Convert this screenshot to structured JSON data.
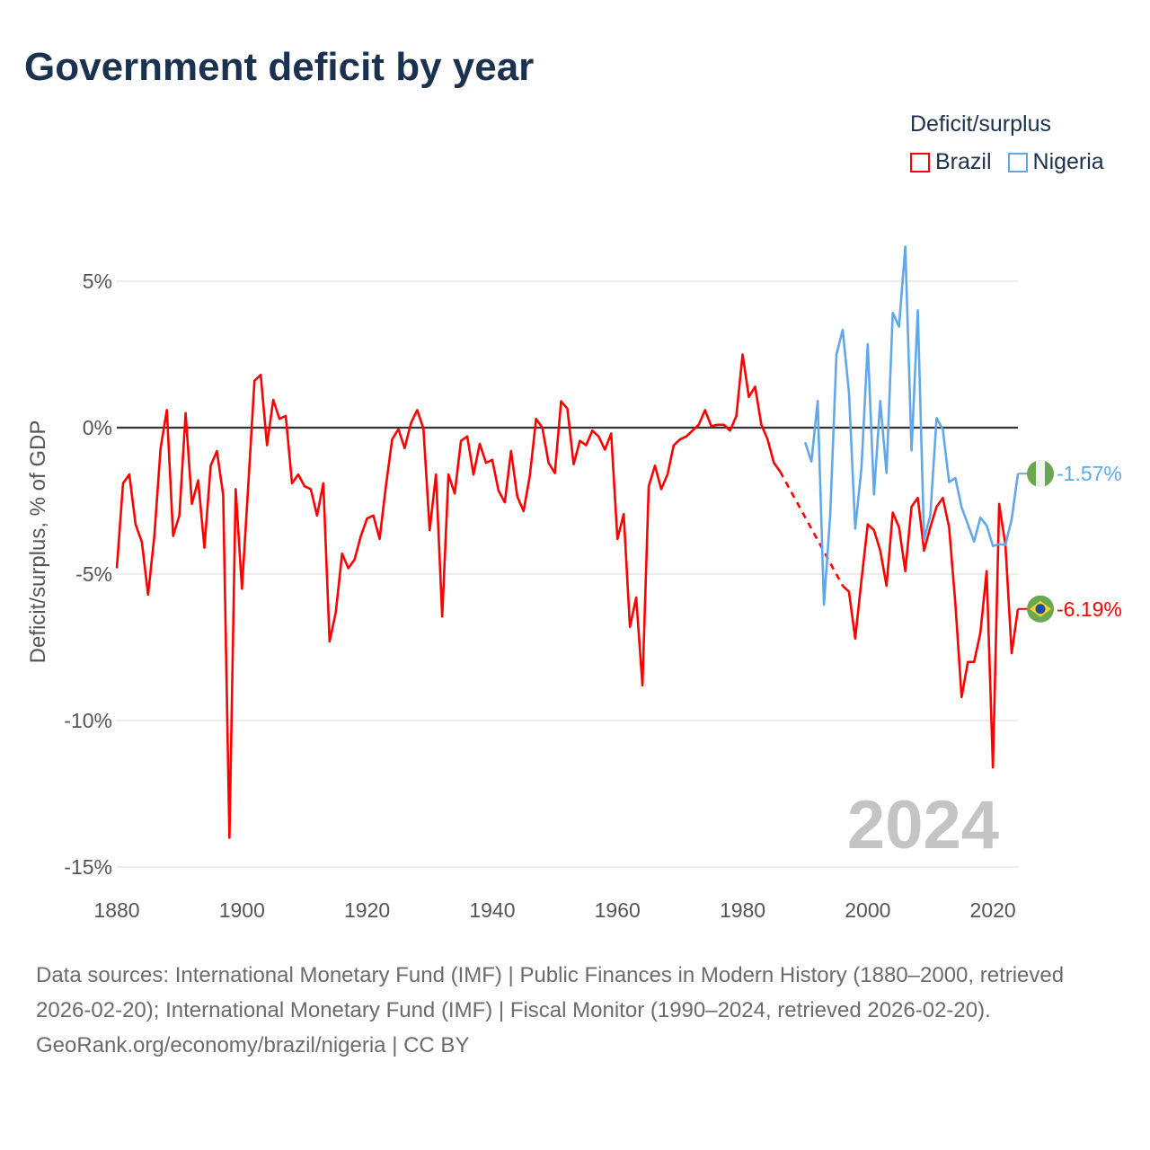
{
  "title": "Government deficit by year",
  "legend": {
    "title": "Deficit/surplus",
    "items": [
      {
        "label": "Brazil",
        "color": "#ff0000"
      },
      {
        "label": "Nigeria",
        "color": "#62a8e8"
      }
    ]
  },
  "footer": {
    "sources": "Data sources: International Monetary Fund (IMF) | Public Finances in Modern History (1880–2000, retrieved 2026-02-20); International Monetary Fund (IMF) | Fiscal Monitor (1990–2024, retrieved 2026-02-20).",
    "credit": "GeoRank.org/economy/brazil/nigeria | CC BY"
  },
  "chart_data": {
    "type": "line",
    "title": "Government deficit by year",
    "ylabel": "Deficit/surplus, % of GDP",
    "xlabel": "",
    "xlim": [
      1880,
      2024
    ],
    "ylim": [
      -15.5,
      6.5
    ],
    "xticks": [
      1880,
      1900,
      1920,
      1940,
      1960,
      1980,
      2000,
      2020
    ],
    "xtick_labels": [
      "1880",
      "1900",
      "1920",
      "1940",
      "1960",
      "1980",
      "2000",
      "2020"
    ],
    "yticks": [
      5,
      0,
      -5,
      -10,
      -15
    ],
    "ytick_labels": [
      "5%",
      "0%",
      "-5%",
      "-10%",
      "-15%"
    ],
    "grid": true,
    "legend_position": "top-right",
    "year_watermark": "2024",
    "series": [
      {
        "name": "Brazil",
        "color": "#ff0000",
        "start_year": 1880,
        "end_label": "-6.19%",
        "flag": "brazil-flag",
        "gap_style": "dashed",
        "values": [
          -4.8,
          -1.9,
          -1.6,
          -3.3,
          -3.9,
          -5.7,
          -3.7,
          -0.7,
          0.6,
          -3.7,
          -3.0,
          0.5,
          -2.6,
          -1.8,
          -4.1,
          -1.3,
          -0.8,
          -2.3,
          -14.0,
          -2.1,
          -5.5,
          -2.0,
          1.6,
          1.8,
          -0.6,
          0.95,
          0.3,
          0.4,
          -1.9,
          -1.6,
          -2.0,
          -2.1,
          -3.0,
          -1.9,
          -7.3,
          -6.3,
          -4.3,
          -4.8,
          -4.5,
          -3.7,
          -3.1,
          -3.0,
          -3.8,
          -2.0,
          -0.4,
          -0.05,
          -0.7,
          0.15,
          0.6,
          -0.03,
          -3.5,
          -1.6,
          -6.45,
          -1.6,
          -2.25,
          -0.45,
          -0.3,
          -1.6,
          -0.55,
          -1.2,
          -1.1,
          -2.15,
          -2.55,
          -0.8,
          -2.35,
          -2.85,
          -1.65,
          0.3,
          0.0,
          -1.2,
          -1.55,
          0.9,
          0.65,
          -1.25,
          -0.45,
          -0.6,
          -0.1,
          -0.3,
          -0.75,
          -0.2,
          -3.8,
          -2.95,
          -6.8,
          -5.8,
          -8.8,
          -2.0,
          -1.3,
          -2.1,
          -1.6,
          -0.6,
          -0.4,
          -0.3,
          -0.1,
          0.1,
          0.6,
          0.05,
          0.1,
          0.1,
          -0.1,
          0.4,
          2.5,
          1.05,
          1.4,
          0.1,
          -0.4,
          -1.2,
          -1.5,
          null,
          null,
          null,
          null,
          null,
          null,
          null,
          null,
          null,
          -5.4,
          -5.6,
          -7.2,
          -5.2,
          -3.3,
          -3.5,
          -4.2,
          -5.4,
          -2.9,
          -3.4,
          -4.9,
          -2.7,
          -2.4,
          -4.2,
          -3.4,
          -2.7,
          -2.4,
          -3.4,
          -6.0,
          -9.2,
          -8.0,
          -8.0,
          -7.0,
          -4.9,
          -11.6,
          -2.6,
          -4.0,
          -7.7,
          -6.19
        ]
      },
      {
        "name": "Nigeria",
        "color": "#62a8e8",
        "start_year": 1990,
        "end_label": "-1.57%",
        "flag": "nigeria-flag",
        "values": [
          -0.5,
          -1.16,
          0.91,
          -6.05,
          -3.0,
          2.5,
          3.34,
          1.2,
          -3.45,
          -1.37,
          2.85,
          -2.28,
          0.91,
          -1.55,
          3.92,
          3.45,
          6.18,
          -0.78,
          4.0,
          -3.83,
          -2.99,
          0.33,
          -0.06,
          -1.86,
          -1.72,
          -2.72,
          -3.3,
          -3.89,
          -3.07,
          -3.34,
          -4.04,
          -3.98,
          -4.0,
          -3.13,
          -1.57
        ]
      }
    ]
  }
}
